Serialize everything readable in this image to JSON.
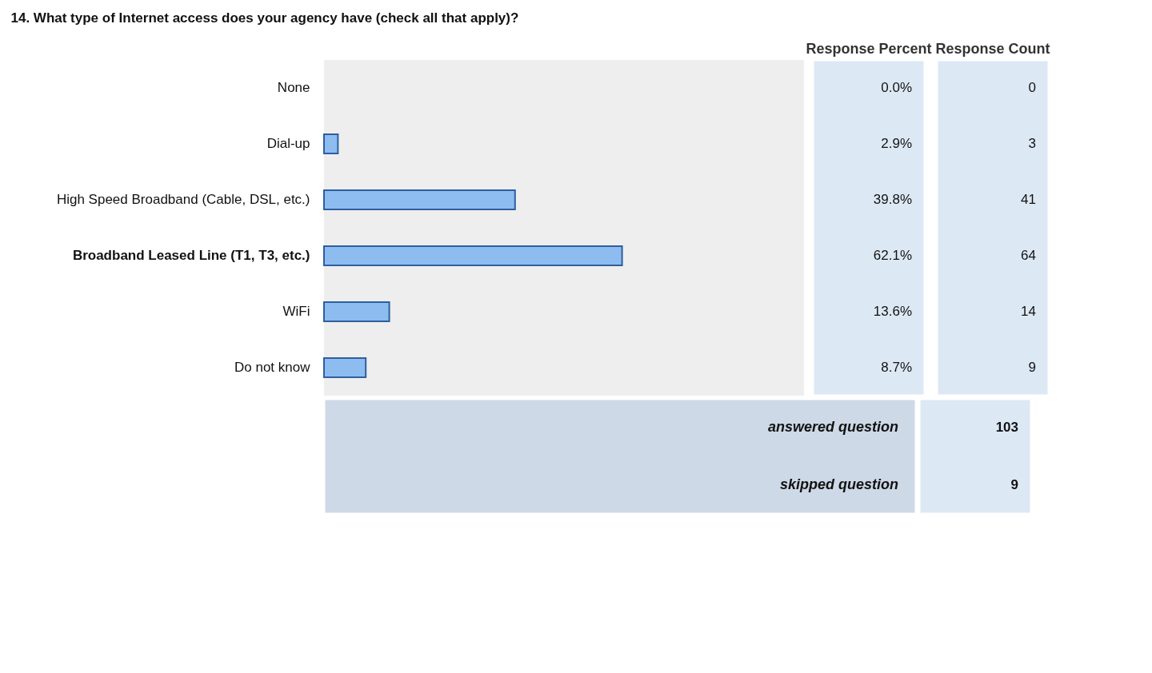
{
  "chart_data": {
    "type": "bar",
    "orientation": "horizontal",
    "title": "14. What type of Internet access does your agency have (check all that apply)?",
    "categories": [
      "None",
      "Dial-up",
      "High Speed Broadband (Cable, DSL, etc.)",
      "Broadband Leased Line (T1, T3, etc.)",
      "WiFi",
      "Do not know"
    ],
    "values": [
      0.0,
      2.9,
      39.8,
      62.1,
      13.6,
      8.7
    ],
    "value_labels": [
      "0.0%",
      "2.9%",
      "39.8%",
      "62.1%",
      "13.6%",
      "8.7%"
    ],
    "color": "#8dbdf0",
    "xlim": [
      0,
      100
    ],
    "tick_labels": "y",
    "annotations": [
      "Response Percent",
      "Response Count",
      "0",
      "3",
      "41",
      "64",
      "14",
      "9",
      "answered question",
      "103",
      "skipped question",
      "9"
    ]
  }
}
